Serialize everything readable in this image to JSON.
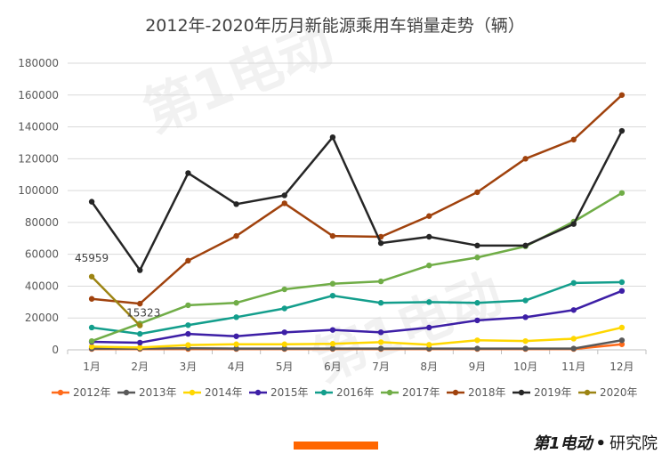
{
  "chart_data": {
    "type": "line",
    "title": "2012年-2020年历月新能源乘用车销量走势（辆）",
    "categories": [
      "1月",
      "2月",
      "3月",
      "4月",
      "5月",
      "6月",
      "7月",
      "8月",
      "9月",
      "10月",
      "11月",
      "12月"
    ],
    "ylim": [
      0,
      180000
    ],
    "yticks": [
      0,
      20000,
      40000,
      60000,
      80000,
      100000,
      120000,
      140000,
      160000,
      180000
    ],
    "grid": true,
    "legend_position": "bottom",
    "series": [
      {
        "name": "2012年",
        "color": "#ff6a1a",
        "values": [
          500,
          500,
          500,
          500,
          500,
          500,
          500,
          500,
          500,
          500,
          500,
          3500
        ]
      },
      {
        "name": "2013年",
        "color": "#595959",
        "values": [
          800,
          800,
          1000,
          800,
          800,
          800,
          800,
          800,
          800,
          800,
          800,
          6000
        ]
      },
      {
        "name": "2014年",
        "color": "#ffd700",
        "values": [
          2000,
          1500,
          3000,
          3500,
          3500,
          3800,
          4800,
          3200,
          6000,
          5500,
          7000,
          14000
        ]
      },
      {
        "name": "2015年",
        "color": "#3d1fa6",
        "values": [
          5000,
          4500,
          10000,
          8500,
          11000,
          12500,
          11000,
          14000,
          18500,
          20500,
          25000,
          37000
        ]
      },
      {
        "name": "2016年",
        "color": "#139e8c",
        "values": [
          14000,
          10000,
          15500,
          20500,
          26000,
          34000,
          29500,
          30000,
          29500,
          31000,
          42000,
          42500
        ]
      },
      {
        "name": "2017年",
        "color": "#70ad47",
        "values": [
          5500,
          16500,
          28000,
          29500,
          38000,
          41500,
          43000,
          53000,
          58000,
          65000,
          80500,
          98500
        ]
      },
      {
        "name": "2018年",
        "color": "#a0420d",
        "values": [
          32000,
          29000,
          56000,
          71500,
          92000,
          71500,
          71000,
          84000,
          99000,
          120000,
          132000,
          160000
        ]
      },
      {
        "name": "2019年",
        "color": "#262626",
        "values": [
          93000,
          50000,
          111000,
          91500,
          97000,
          133500,
          67000,
          71000,
          65500,
          65500,
          79000,
          137500
        ]
      },
      {
        "name": "2020年",
        "color": "#9c8413",
        "values": [
          45959,
          15323,
          null,
          null,
          null,
          null,
          null,
          null,
          null,
          null,
          null,
          null
        ]
      }
    ],
    "data_labels": [
      {
        "series": "2020年",
        "index": 0,
        "text": "45959"
      },
      {
        "series": "2020年",
        "index": 1,
        "text": "15323"
      }
    ]
  },
  "watermark": {
    "text": "第1电动",
    "url": "www.D1EV.com"
  },
  "brand": {
    "logo": "第1电动",
    "dot": "•",
    "org": "研究院",
    "logo_accent": "1"
  }
}
